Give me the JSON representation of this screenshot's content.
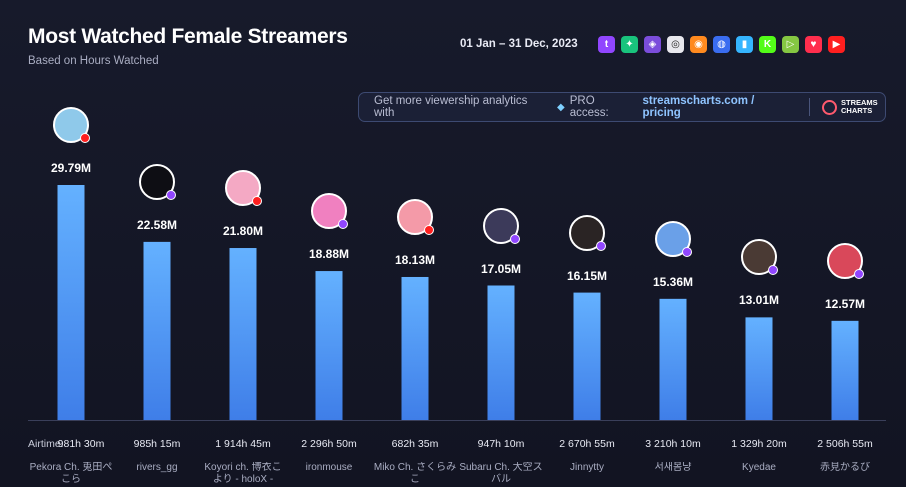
{
  "header": {
    "title": "Most Watched Female Streamers",
    "subtitle": "Based on Hours Watched",
    "date_range": "01 Jan – 31 Dec, 2023"
  },
  "platforms": [
    {
      "name": "twitch-icon",
      "color": "#9146ff",
      "glyph": "t"
    },
    {
      "name": "trovo-icon",
      "color": "#19c37d",
      "glyph": "✦"
    },
    {
      "name": "kick-alt-icon",
      "color": "#7b4ddb",
      "glyph": "◈"
    },
    {
      "name": "ghost-icon",
      "color": "#e8e8ee",
      "glyph": "◎"
    },
    {
      "name": "afreecatv-icon",
      "color": "#ff8a1f",
      "glyph": "◉"
    },
    {
      "name": "mixer-icon",
      "color": "#3a6df0",
      "glyph": "◍"
    },
    {
      "name": "nimo-icon",
      "color": "#35b5ff",
      "glyph": "▮"
    },
    {
      "name": "kick-icon",
      "color": "#53fc18",
      "glyph": "K"
    },
    {
      "name": "rumble-icon",
      "color": "#85c742",
      "glyph": "▷"
    },
    {
      "name": "heart-icon",
      "color": "#ff2e4d",
      "glyph": "♥"
    },
    {
      "name": "youtube-icon",
      "color": "#ff1f1f",
      "glyph": "▶"
    }
  ],
  "promo": {
    "text": "Get more viewership analytics with",
    "pro": "PRO access:",
    "link": "streamscharts.com / pricing",
    "brand": "STREAMS CHARTS"
  },
  "chart_data": {
    "type": "bar",
    "title": "Most Watched Female Streamers",
    "subtitle": "Based on Hours Watched",
    "categories": [
      "Pekora Ch. 兎田ぺこら",
      "rivers_gg",
      "Koyori ch. 博衣こより - holoX -",
      "ironmouse",
      "Miko Ch. さくらみこ",
      "Subaru Ch. 大空スバル",
      "Jinnytty",
      "서새봄냥",
      "Kyedae",
      "赤見かるび"
    ],
    "value_labels": [
      "29.79M",
      "22.58M",
      "21.80M",
      "18.88M",
      "18.13M",
      "17.05M",
      "16.15M",
      "15.36M",
      "13.01M",
      "12.57M"
    ],
    "values": [
      29.79,
      22.58,
      21.8,
      18.88,
      18.13,
      17.05,
      16.15,
      15.36,
      13.01,
      12.57
    ],
    "airtime_label": "Airtime:",
    "airtime": [
      "981h 30m",
      "985h 15m",
      "1 914h 45m",
      "2 296h 50m",
      "682h 35m",
      "947h 10m",
      "2 670h 55m",
      "3 210h 10m",
      "1 329h 20m",
      "2 506h 55m"
    ],
    "platform": [
      "youtube",
      "twitch",
      "youtube",
      "twitch",
      "youtube",
      "twitch",
      "twitch",
      "twitch",
      "twitch",
      "twitch"
    ],
    "avatar_colors": [
      "#8fc9ea",
      "#0e0e14",
      "#f4a9c4",
      "#f080c0",
      "#f49aa8",
      "#3c3a5a",
      "#2a2424",
      "#6aa0e8",
      "#4a3a34",
      "#d9485a"
    ],
    "bar_color": "#5aa7ff",
    "ylim": [
      0,
      30
    ],
    "legend": "none"
  }
}
